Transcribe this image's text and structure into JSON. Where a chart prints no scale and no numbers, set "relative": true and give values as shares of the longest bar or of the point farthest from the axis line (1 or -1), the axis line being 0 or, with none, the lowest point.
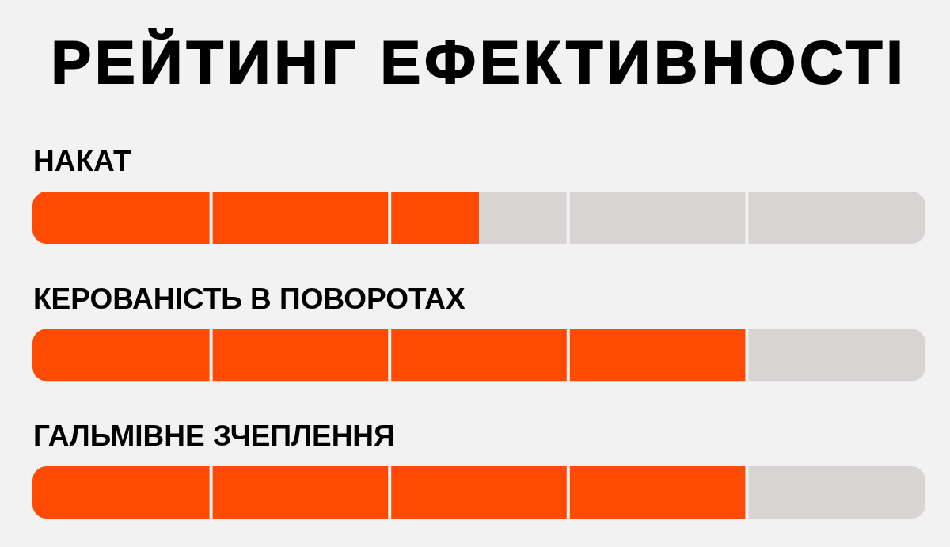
{
  "chart_data": {
    "type": "bar",
    "orientation": "horizontal",
    "stacked": true,
    "relative": true,
    "title": "РЕЙТИНГ ЕФЕКТИВНОСТІ",
    "categories": [
      "НАКАТ",
      "КЕРОВАНІСТЬ В ПОВОРОТАХ",
      "ГАЛЬМІВНЕ ЗЧЕПЛЕННЯ"
    ],
    "series": [
      {
        "color": "#fe4a03",
        "values": [
          0.5,
          0.8,
          0.8
        ]
      },
      {
        "color": "#d8d4d3",
        "values": [
          0.5,
          0.2,
          0.2
        ]
      }
    ]
  }
}
